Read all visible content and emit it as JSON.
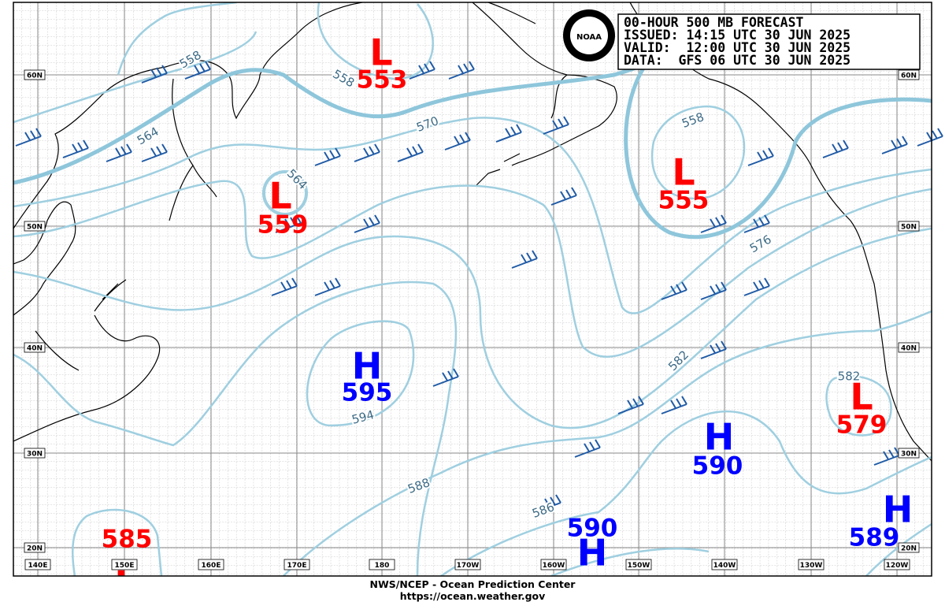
{
  "header": {
    "lines": [
      "00-HOUR 500 MB FORECAST",
      "ISSUED: 14:15 UTC 30 JUN 2025",
      "VALID:  12:00 UTC 30 JUN 2025",
      "DATA:  GFS 06 UTC 30 JUN 2025"
    ]
  },
  "logo": "NOAA",
  "lat_labels": [
    "60N",
    "50N",
    "40N",
    "30N",
    "20N"
  ],
  "lon_labels": [
    "140E",
    "150E",
    "160E",
    "170E",
    "180",
    "170W",
    "160W",
    "150W",
    "140W",
    "130W",
    "120W"
  ],
  "centers": [
    {
      "letter": "L",
      "value": 553
    },
    {
      "letter": "L",
      "value": 559
    },
    {
      "letter": "L",
      "value": 555
    },
    {
      "letter": "H",
      "value": 595
    },
    {
      "letter": "H",
      "value": 590
    },
    {
      "letter": "L",
      "value": 579
    },
    {
      "letter": "L",
      "value": 585
    },
    {
      "letter": "H",
      "value": 590
    },
    {
      "letter": "H",
      "value": 589
    }
  ],
  "contour_labels": [
    558,
    558,
    564,
    564,
    570,
    558,
    576,
    582,
    582,
    594,
    588,
    586
  ],
  "footer": {
    "lines": [
      "NWS/NCEP - Ocean Prediction Center",
      "https://ocean.weather.gov"
    ]
  }
}
